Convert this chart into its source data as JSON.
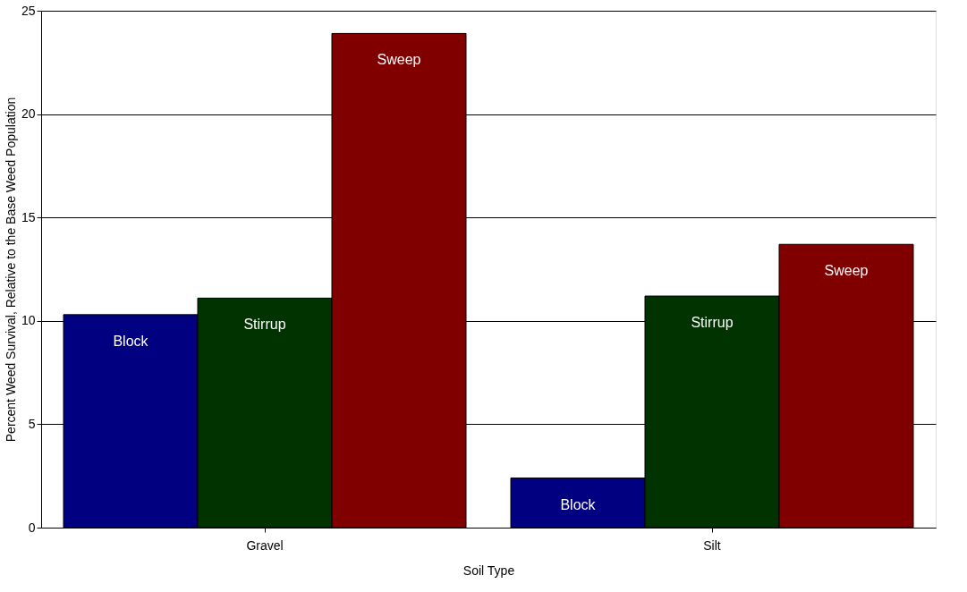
{
  "chart_data": {
    "type": "bar",
    "xlabel": "Soil Type",
    "ylabel": "Percent Weed Survival, Relative to the Base Weed Population",
    "categories": [
      "Gravel",
      "Silt"
    ],
    "series": [
      {
        "name": "Block",
        "color": "#000080",
        "values": [
          10.3,
          2.4
        ]
      },
      {
        "name": "Stirrup",
        "color": "#003300",
        "values": [
          11.1,
          11.2
        ]
      },
      {
        "name": "Sweep",
        "color": "#800000",
        "values": [
          23.9,
          13.7
        ]
      }
    ],
    "ylim": [
      0,
      25
    ],
    "yticks": [
      0,
      5,
      10,
      15,
      20,
      25
    ],
    "grid": "y",
    "legend": false
  }
}
